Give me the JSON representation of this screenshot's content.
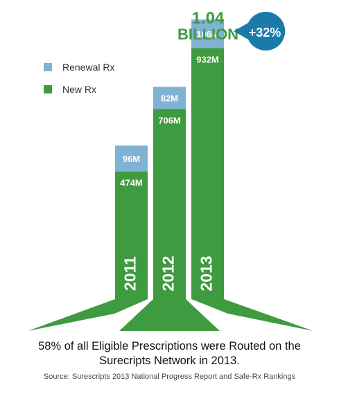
{
  "chart_data": {
    "type": "bar",
    "stacked": true,
    "categories": [
      "2011",
      "2012",
      "2013"
    ],
    "series": [
      {
        "name": "New Rx",
        "values": [
          474,
          706,
          932
        ],
        "labels": [
          "474M",
          "706M",
          "932M"
        ]
      },
      {
        "name": "Renewal Rx",
        "values": [
          96,
          82,
          106
        ],
        "labels": [
          "96M",
          "82M",
          "106M"
        ]
      }
    ],
    "unit": "M",
    "total_annotation": {
      "value": "1.04",
      "unit": "BILLION",
      "growth": "+32%"
    },
    "legend": [
      {
        "label": "Renewal Rx",
        "color": "#7fb2d3"
      },
      {
        "label": "New Rx",
        "color": "#3f9b3f"
      }
    ],
    "colors": {
      "new": "#3f9b3f",
      "renewal": "#7fb2d3",
      "badge": "#1a7aa8",
      "total_text": "#3f9b3f"
    },
    "legend_position": "top-left",
    "grid": false
  },
  "caption": {
    "line1": "58% of all Eligible Prescriptions were Routed on the",
    "line2": "Surecripts Network in 2013.",
    "source": "Source: Surescripts 2013 National Progress Report and Safe-Rx Rankings"
  }
}
